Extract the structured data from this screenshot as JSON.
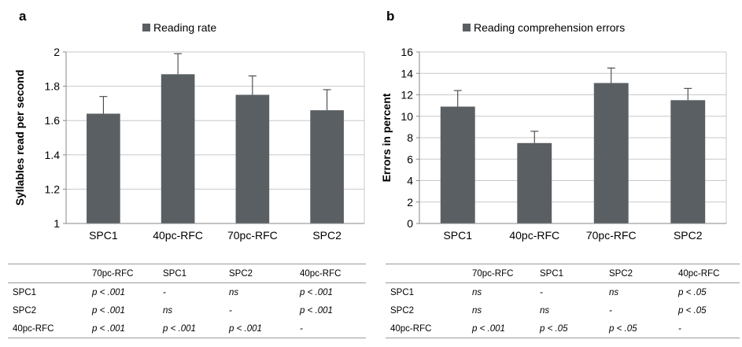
{
  "chart_data": [
    {
      "type": "bar",
      "panel_label": "a",
      "legend": "Reading rate",
      "ylabel": "Syllables read per second",
      "categories": [
        "SPC1",
        "40pc-RFC",
        "70pc-RFC",
        "SPC2"
      ],
      "values": [
        1.64,
        1.87,
        1.75,
        1.66
      ],
      "errors": [
        0.1,
        0.12,
        0.11,
        0.12
      ],
      "ylim": [
        1,
        2
      ],
      "yticks": [
        1,
        1.2,
        1.4,
        1.6,
        1.8,
        2
      ],
      "ytick_labels": [
        "1",
        "1.2",
        "1.4",
        "1.6",
        "1.8",
        "2"
      ],
      "grid": true,
      "legend_position": "top-center",
      "bar_color": "#595f63"
    },
    {
      "type": "bar",
      "panel_label": "b",
      "legend": "Reading comprehension errors",
      "ylabel": "Errors in percent",
      "categories": [
        "SPC1",
        "40pc-RFC",
        "70pc-RFC",
        "SPC2"
      ],
      "values": [
        10.9,
        7.5,
        13.1,
        11.5
      ],
      "errors": [
        1.5,
        1.1,
        1.4,
        1.1
      ],
      "ylim": [
        0,
        16
      ],
      "yticks": [
        0,
        2,
        4,
        6,
        8,
        10,
        12,
        14,
        16
      ],
      "ytick_labels": [
        "0",
        "2",
        "4",
        "6",
        "8",
        "10",
        "12",
        "14",
        "16"
      ],
      "grid": true,
      "legend_position": "top-center",
      "bar_color": "#595f63"
    }
  ],
  "tables": [
    {
      "columns": [
        "",
        "70pc-RFC",
        "SPC1",
        "SPC2",
        "40pc-RFC"
      ],
      "rows": [
        [
          "SPC1",
          "p < .001",
          "-",
          "ns",
          "p < .001"
        ],
        [
          "SPC2",
          "p < .001",
          "ns",
          "-",
          "p < .001"
        ],
        [
          "40pc-RFC",
          "p < .001",
          "p < .001",
          "p < .001",
          "-"
        ]
      ]
    },
    {
      "columns": [
        "",
        "70pc-RFC",
        "SPC1",
        "SPC2",
        "40pc-RFC"
      ],
      "rows": [
        [
          "SPC1",
          "ns",
          "-",
          "ns",
          "p < .05"
        ],
        [
          "SPC2",
          "ns",
          "ns",
          "-",
          "p < .05"
        ],
        [
          "40pc-RFC",
          "p < .001",
          "p < .05",
          "p < .05",
          "-"
        ]
      ]
    }
  ]
}
